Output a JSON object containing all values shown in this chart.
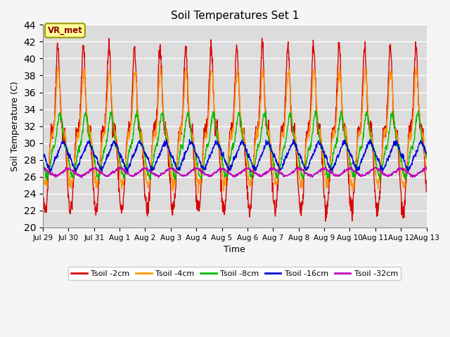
{
  "title": "Soil Temperatures Set 1",
  "xlabel": "Time",
  "ylabel": "Soil Temperature (C)",
  "ylim": [
    20,
    44
  ],
  "yticks": [
    20,
    22,
    24,
    26,
    28,
    30,
    32,
    34,
    36,
    38,
    40,
    42,
    44
  ],
  "plot_bg_color": "#dcdcdc",
  "fig_bg_color": "#f5f5f5",
  "grid_color": "#ffffff",
  "annotation_text": "VR_met",
  "annotation_fg": "#8b0000",
  "annotation_bg": "#ffff99",
  "annotation_border": "#999900",
  "series": [
    "Tsoil -2cm",
    "Tsoil -4cm",
    "Tsoil -8cm",
    "Tsoil -16cm",
    "Tsoil -32cm"
  ],
  "series_colors": [
    "#dd0000",
    "#ff9900",
    "#00bb00",
    "#0000dd",
    "#bb00bb"
  ],
  "xtick_labels": [
    "Jul 29",
    "Jul 30",
    "Jul 31",
    "Aug 1",
    "Aug 2",
    "Aug 3",
    "Aug 4",
    "Aug 5",
    "Aug 6",
    "Aug 7",
    "Aug 8",
    "Aug 9",
    "Aug 10",
    "Aug 11",
    "Aug 12",
    "Aug 13"
  ],
  "n_days": 15,
  "pts_per_day": 96
}
